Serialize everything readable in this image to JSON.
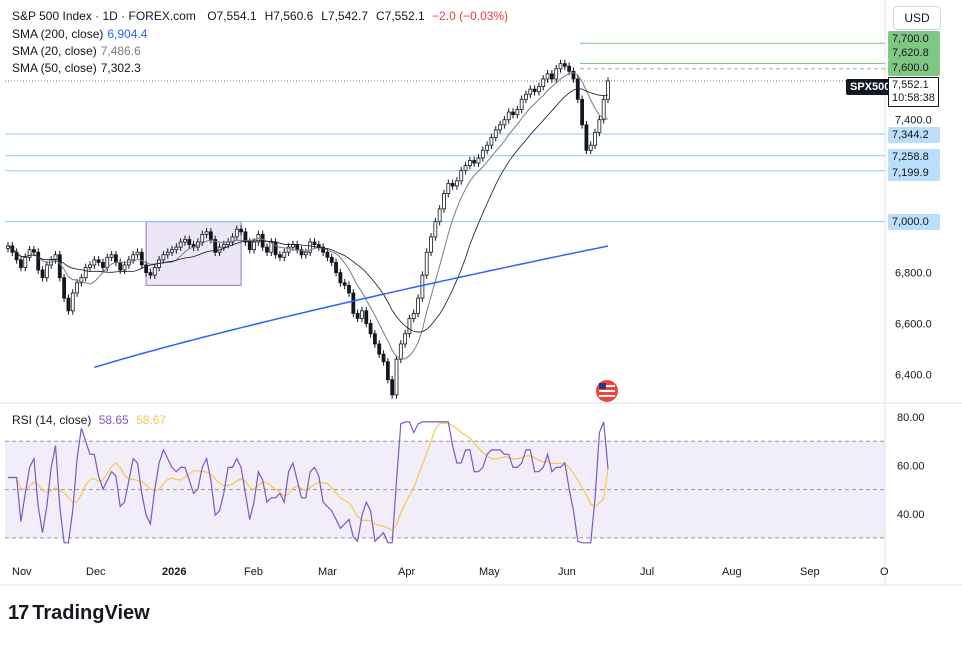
{
  "header": {
    "symbol_line": "S&P 500 Index · 1D · FOREX.com",
    "ohlc": [
      {
        "k": "O",
        "v": "7,554.1"
      },
      {
        "k": "H",
        "v": "7,560.6"
      },
      {
        "k": "L",
        "v": "7,542.7"
      },
      {
        "k": "C",
        "v": "7,552.1"
      }
    ],
    "change": "−2.0 (−0.03%)",
    "indicators": [
      {
        "label": "SMA (200, close)",
        "value": "6,904.4",
        "color": "#2962ff"
      },
      {
        "label": "SMA (20, close)",
        "value": "7,486.6",
        "color": "#787b86"
      },
      {
        "label": "SMA (50, close)",
        "value": "7,302.3",
        "color": "#131722"
      }
    ]
  },
  "currency": "USD",
  "ticker_badge": "SPX500",
  "price_tag": {
    "price": "7,552.1",
    "countdown": "10:58:38"
  },
  "level_tags": [
    "7,700.0",
    "7,620.8",
    "7,600.0",
    "7,344.2",
    "7,258.8",
    "7,199.9",
    "7,000.0"
  ],
  "rsi_legend": {
    "label": "RSI (14, close)",
    "rsi": "58.65",
    "ma": "58.67"
  },
  "brand": "TradingView",
  "chart_data": {
    "type": "candlestick",
    "x_tick_labels": [
      "Nov",
      "Dec",
      "2026",
      "Feb",
      "Mar",
      "Apr",
      "May",
      "Jun",
      "Jul",
      "Aug",
      "Sep",
      "O"
    ],
    "price_ticks": [
      7700,
      7400,
      6800,
      6600,
      6400
    ],
    "price_range": [
      6300,
      7760
    ],
    "candle_closes": [
      6905,
      6880,
      6850,
      6820,
      6860,
      6890,
      6880,
      6810,
      6780,
      6830,
      6850,
      6870,
      6780,
      6700,
      6650,
      6720,
      6760,
      6780,
      6820,
      6830,
      6850,
      6840,
      6820,
      6860,
      6870,
      6840,
      6810,
      6830,
      6850,
      6870,
      6880,
      6830,
      6800,
      6790,
      6820,
      6850,
      6870,
      6880,
      6890,
      6900,
      6920,
      6930,
      6910,
      6900,
      6920,
      6950,
      6960,
      6930,
      6880,
      6900,
      6910,
      6920,
      6940,
      6970,
      6960,
      6920,
      6890,
      6920,
      6950,
      6900,
      6880,
      6920,
      6870,
      6860,
      6880,
      6900,
      6910,
      6890,
      6870,
      6880,
      6920,
      6910,
      6900,
      6880,
      6860,
      6840,
      6800,
      6760,
      6750,
      6720,
      6640,
      6620,
      6650,
      6600,
      6560,
      6520,
      6480,
      6450,
      6380,
      6320,
      6460,
      6520,
      6560,
      6620,
      6640,
      6700,
      6790,
      6880,
      6940,
      7000,
      7050,
      7110,
      7150,
      7140,
      7160,
      7200,
      7220,
      7240,
      7230,
      7250,
      7280,
      7300,
      7330,
      7360,
      7380,
      7400,
      7430,
      7420,
      7440,
      7480,
      7500,
      7520,
      7510,
      7530,
      7560,
      7580,
      7560,
      7600,
      7620,
      7610,
      7590,
      7560,
      7480,
      7380,
      7280,
      7300,
      7350,
      7400,
      7480,
      7552
    ],
    "sma200_range": [
      6300,
      6904.4
    ],
    "sma20_last": 7486.6,
    "sma50_last": 7302.3,
    "shaded_range_box": {
      "from_price": 6750,
      "to_price": 7000
    },
    "horizontal_levels": [
      7700,
      7620.8,
      7600,
      7344.2,
      7258.8,
      7199.9,
      7000
    ],
    "rsi": {
      "ticks": [
        80,
        60,
        40
      ],
      "bands": [
        70,
        50,
        30
      ],
      "last_rsi": 58.65,
      "last_ma": 58.67
    }
  }
}
